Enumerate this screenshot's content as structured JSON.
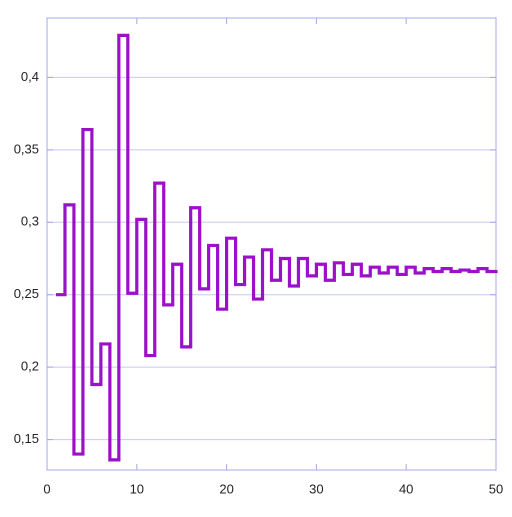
{
  "chart_data": {
    "type": "step",
    "x": [
      1,
      2,
      3,
      4,
      5,
      6,
      7,
      8,
      9,
      10,
      11,
      12,
      13,
      14,
      15,
      16,
      17,
      18,
      19,
      20,
      21,
      22,
      23,
      24,
      25,
      26,
      27,
      28,
      29,
      30,
      31,
      32,
      33,
      34,
      35,
      36,
      37,
      38,
      39,
      40,
      41,
      42,
      43,
      44,
      45,
      46,
      47,
      48,
      49,
      50
    ],
    "series": [
      {
        "color": "#9b10c8",
        "values": [
          0.25,
          0.312,
          0.14,
          0.364,
          0.188,
          0.216,
          0.136,
          0.429,
          0.251,
          0.302,
          0.208,
          0.327,
          0.243,
          0.271,
          0.214,
          0.31,
          0.254,
          0.284,
          0.24,
          0.289,
          0.257,
          0.276,
          0.247,
          0.281,
          0.26,
          0.275,
          0.256,
          0.275,
          0.263,
          0.271,
          0.26,
          0.272,
          0.264,
          0.271,
          0.263,
          0.269,
          0.265,
          0.269,
          0.264,
          0.269,
          0.265,
          0.268,
          0.266,
          0.268,
          0.266,
          0.267,
          0.266,
          0.268,
          0.266,
          0.267
        ]
      }
    ],
    "xlim": [
      0,
      50
    ],
    "ylim": [
      0.129,
      0.441
    ],
    "xticks": [
      0,
      10,
      20,
      30,
      40,
      50
    ],
    "yticks": [
      {
        "value": 0.15,
        "label": "0,15"
      },
      {
        "value": 0.2,
        "label": "0,2"
      },
      {
        "value": 0.25,
        "label": "0,25"
      },
      {
        "value": 0.3,
        "label": "0,3"
      },
      {
        "value": 0.35,
        "label": "0,35"
      },
      {
        "value": 0.4,
        "label": "0,4"
      }
    ],
    "grid": true
  }
}
